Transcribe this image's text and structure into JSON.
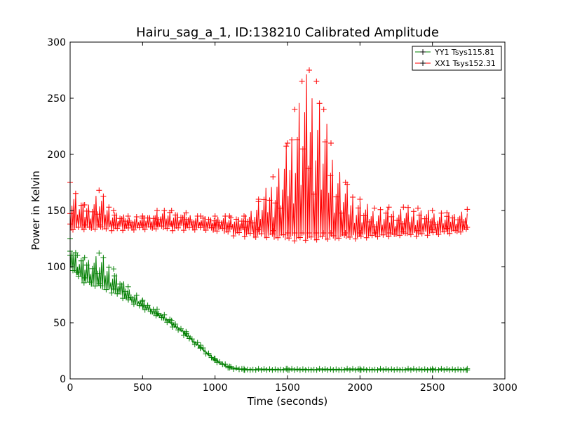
{
  "chart_data": {
    "type": "line",
    "title": "Hairu_sag_a_1, ID:138210 Calibrated Amplitude",
    "xlabel": "Time (seconds)",
    "ylabel": "Power in Kelvin",
    "xlim": [
      0,
      3000
    ],
    "ylim": [
      0,
      300
    ],
    "xticks": [
      "0",
      "500",
      "1000",
      "1500",
      "2000",
      "2500",
      "3000"
    ],
    "yticks": [
      "0",
      "50",
      "100",
      "150",
      "200",
      "250",
      "300"
    ],
    "grid": false,
    "legend_position": "top-right",
    "marker": "+",
    "series": [
      {
        "name": "YY1 Tsys115.81",
        "color": "#007f00",
        "x": [
          0,
          50,
          100,
          200,
          300,
          400,
          500,
          600,
          700,
          800,
          900,
          1000,
          1100,
          1200,
          1500,
          2000,
          2500,
          2740
        ],
        "y": [
          110,
          95,
          90,
          85,
          80,
          72,
          65,
          58,
          50,
          40,
          28,
          17,
          10,
          8,
          8,
          8,
          8,
          8
        ],
        "scatter_upper": [
          125,
          110,
          108,
          112,
          98,
          82,
          70,
          62,
          52,
          42,
          30,
          18,
          11,
          9,
          9,
          9,
          9,
          9
        ],
        "scatter_lower": [
          100,
          88,
          84,
          80,
          76,
          69,
          62,
          55,
          47,
          37,
          26,
          15,
          9,
          8,
          8,
          8,
          8,
          8
        ]
      },
      {
        "name": "XX1 Tsys152.31",
        "color": "#ff0000",
        "x": [
          0,
          100,
          200,
          300,
          400,
          500,
          600,
          700,
          800,
          900,
          1000,
          1100,
          1200,
          1300,
          1400,
          1500,
          1550,
          1600,
          1650,
          1700,
          1750,
          1800,
          1900,
          2000,
          2100,
          2200,
          2300,
          2400,
          2500,
          2600,
          2740
        ],
        "y": [
          138,
          137,
          137,
          137,
          137,
          137,
          138,
          138,
          138,
          137,
          137,
          136,
          135,
          133,
          132,
          130,
          130,
          130,
          130,
          130,
          130,
          130,
          130,
          130,
          130,
          130,
          131,
          132,
          133,
          134,
          135
        ],
        "scatter_upper": [
          175,
          155,
          168,
          150,
          145,
          145,
          150,
          150,
          148,
          145,
          145,
          145,
          145,
          160,
          180,
          210,
          240,
          265,
          275,
          265,
          240,
          210,
          175,
          160,
          152,
          153,
          153,
          152,
          150,
          148,
          151
        ],
        "scatter_lower": [
          132,
          132,
          132,
          132,
          132,
          132,
          132,
          132,
          132,
          132,
          130,
          128,
          126,
          125,
          124,
          123,
          123,
          123,
          123,
          123,
          123,
          123,
          124,
          125,
          126,
          126,
          127,
          127,
          128,
          128,
          130
        ]
      }
    ]
  }
}
